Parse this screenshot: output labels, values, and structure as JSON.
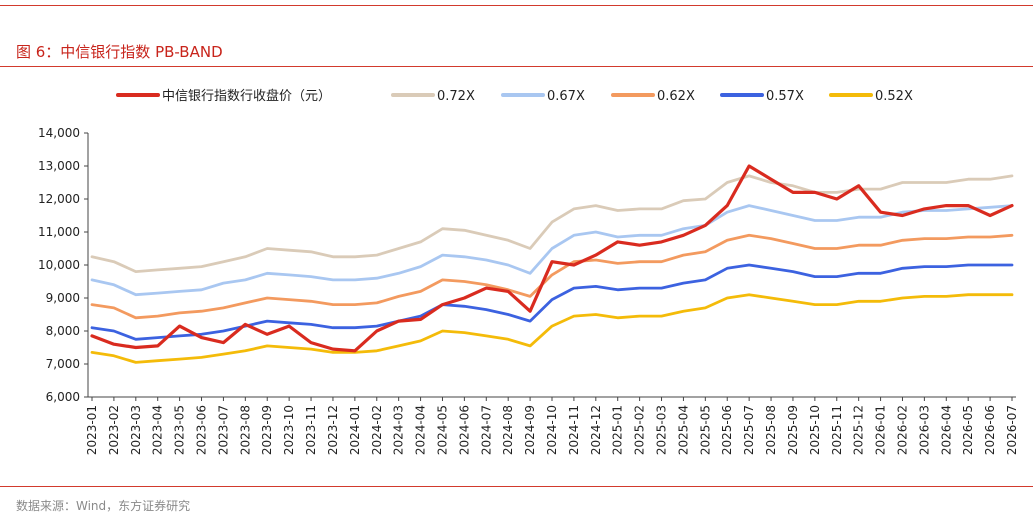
{
  "figure": {
    "title": "图 6：中信银行指数 PB-BAND",
    "source": "数据来源：Wind，东方证券研究"
  },
  "chart_data": {
    "type": "line",
    "title": "",
    "xlabel": "",
    "ylabel": "",
    "ylim": [
      6000,
      14000
    ],
    "yticks": [
      "6,000",
      "7,000",
      "8,000",
      "9,000",
      "10,000",
      "11,000",
      "12,000",
      "13,000",
      "14,000"
    ],
    "yticks_values": [
      6000,
      7000,
      8000,
      9000,
      10000,
      11000,
      12000,
      13000,
      14000
    ],
    "categories": [
      "2023-01",
      "2023-02",
      "2023-03",
      "2023-04",
      "2023-05",
      "2023-06",
      "2023-07",
      "2023-08",
      "2023-09",
      "2023-10",
      "2023-11",
      "2023-12",
      "2024-01",
      "2024-02",
      "2024-03",
      "2024-04",
      "2024-05",
      "2024-06",
      "2024-07",
      "2024-08",
      "2024-09",
      "2024-10",
      "2024-11",
      "2024-12",
      "2025-01",
      "2025-02",
      "2025-03",
      "2025-04",
      "2025-05",
      "2025-06",
      "2025-07",
      "2025-08",
      "2025-09",
      "2025-10",
      "2025-11",
      "2025-12",
      "2026-01",
      "2026-02",
      "2026-03",
      "2026-04",
      "2026-05",
      "2026-06",
      "2026-07"
    ],
    "grid": false,
    "legend_position": "top",
    "series": [
      {
        "name": "中信银行指数行收盘价（元）",
        "color": "#d92b1f",
        "width": 3.2,
        "values": [
          7850,
          7600,
          7500,
          7550,
          8150,
          7800,
          7650,
          8200,
          7900,
          8150,
          7650,
          7450,
          7400,
          8000,
          8300,
          8350,
          8800,
          9000,
          9300,
          9200,
          8600,
          10100,
          10000,
          10300,
          10700,
          10600,
          10700,
          10900,
          11200,
          11800,
          13000,
          12600,
          12200,
          12200,
          12000,
          12400,
          11600,
          11500,
          11700,
          11800,
          11800,
          11500,
          11800
        ]
      },
      {
        "name": "0.72X",
        "color": "#dacbb8",
        "width": 2.8,
        "values": [
          10250,
          10100,
          9800,
          9850,
          9900,
          9950,
          10100,
          10250,
          10500,
          10450,
          10400,
          10250,
          10250,
          10300,
          10500,
          10700,
          11100,
          11050,
          10900,
          10750,
          10500,
          11300,
          11700,
          11800,
          11650,
          11700,
          11700,
          11950,
          12000,
          12500,
          12700,
          12500,
          12400,
          12200,
          12200,
          12300,
          12300,
          12500,
          12500,
          12500,
          12600,
          12600,
          12700
        ]
      },
      {
        "name": "0.67X",
        "color": "#a9c7f1",
        "width": 2.8,
        "values": [
          9550,
          9400,
          9100,
          9150,
          9200,
          9250,
          9450,
          9550,
          9750,
          9700,
          9650,
          9550,
          9550,
          9600,
          9750,
          9950,
          10300,
          10250,
          10150,
          10000,
          9750,
          10500,
          10900,
          11000,
          10850,
          10900,
          10900,
          11100,
          11200,
          11600,
          11800,
          11650,
          11500,
          11350,
          11350,
          11450,
          11450,
          11600,
          11650,
          11650,
          11700,
          11750,
          11800
        ]
      },
      {
        "name": "0.62X",
        "color": "#f39a5f",
        "width": 2.8,
        "values": [
          8800,
          8700,
          8400,
          8450,
          8550,
          8600,
          8700,
          8850,
          9000,
          8950,
          8900,
          8800,
          8800,
          8850,
          9050,
          9200,
          9550,
          9500,
          9400,
          9250,
          9050,
          9700,
          10100,
          10150,
          10050,
          10100,
          10100,
          10300,
          10400,
          10750,
          10900,
          10800,
          10650,
          10500,
          10500,
          10600,
          10600,
          10750,
          10800,
          10800,
          10850,
          10850,
          10900
        ]
      },
      {
        "name": "0.57X",
        "color": "#3c62e0",
        "width": 2.8,
        "values": [
          8100,
          8000,
          7750,
          7800,
          7850,
          7900,
          8000,
          8150,
          8300,
          8250,
          8200,
          8100,
          8100,
          8150,
          8300,
          8450,
          8800,
          8750,
          8650,
          8500,
          8300,
          8950,
          9300,
          9350,
          9250,
          9300,
          9300,
          9450,
          9550,
          9900,
          10000,
          9900,
          9800,
          9650,
          9650,
          9750,
          9750,
          9900,
          9950,
          9950,
          10000,
          10000,
          10000
        ]
      },
      {
        "name": "0.52X",
        "color": "#f4bb09",
        "width": 2.8,
        "values": [
          7350,
          7250,
          7050,
          7100,
          7150,
          7200,
          7300,
          7400,
          7550,
          7500,
          7450,
          7350,
          7350,
          7400,
          7550,
          7700,
          8000,
          7950,
          7850,
          7750,
          7550,
          8150,
          8450,
          8500,
          8400,
          8450,
          8450,
          8600,
          8700,
          9000,
          9100,
          9000,
          8900,
          8800,
          8800,
          8900,
          8900,
          9000,
          9050,
          9050,
          9100,
          9100,
          9100
        ]
      }
    ]
  }
}
